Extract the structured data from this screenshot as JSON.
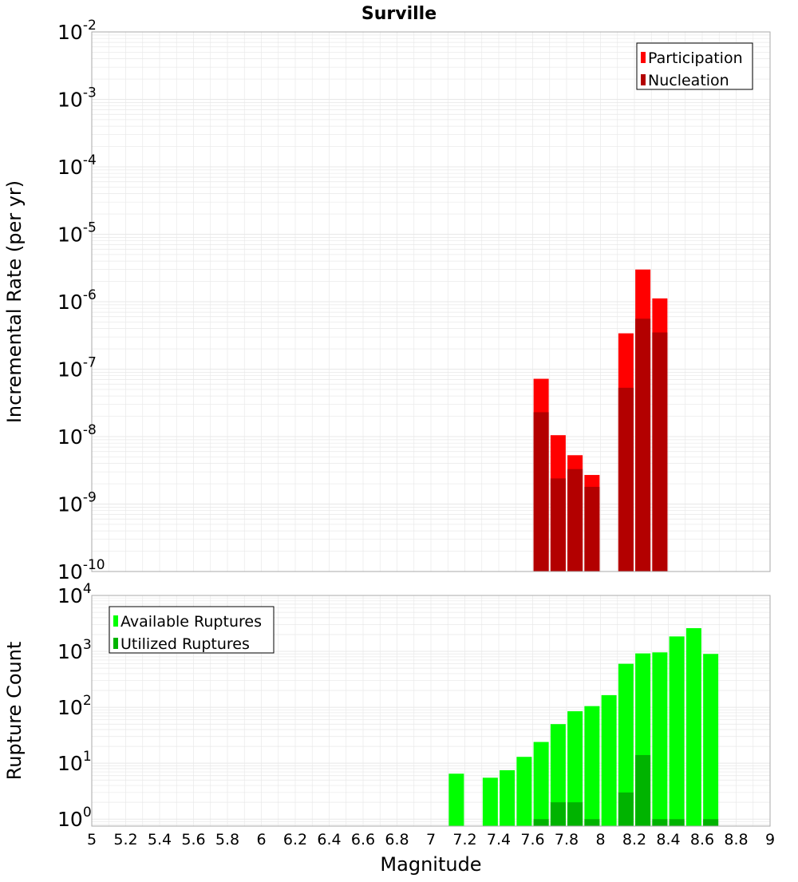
{
  "title": "Surville",
  "colors": {
    "participation": "#ff0000",
    "nucleation": "#b30000",
    "available": "#00ff00",
    "utilized": "#00b300",
    "grid": "#e8e8e8",
    "frame": "#aaaaaa"
  },
  "chart_data": [
    {
      "type": "bar",
      "panel": "top",
      "ylabel": "Incremental Rate (per yr)",
      "yscale": "log",
      "ylim": [
        1e-10,
        0.01
      ],
      "xlim": [
        5,
        9
      ],
      "ytick_labels": [
        {
          "base": "10",
          "exp": "-2"
        },
        {
          "base": "10",
          "exp": "-3"
        },
        {
          "base": "10",
          "exp": "-4"
        },
        {
          "base": "10",
          "exp": "-5"
        },
        {
          "base": "10",
          "exp": "-6"
        },
        {
          "base": "10",
          "exp": "-7"
        },
        {
          "base": "10",
          "exp": "-8"
        },
        {
          "base": "10",
          "exp": "-9"
        },
        {
          "base": "10",
          "exp": "-10"
        }
      ],
      "legend_position": "top-right",
      "series": [
        {
          "name": "Participation",
          "color": "#ff0000",
          "x": [
            7.65,
            7.75,
            7.85,
            7.95,
            8.15,
            8.25,
            8.35
          ],
          "values": [
            7.2e-08,
            1.05e-08,
            5.3e-09,
            2.7e-09,
            3.4e-07,
            3e-06,
            1.12e-06
          ]
        },
        {
          "name": "Nucleation",
          "color": "#b30000",
          "x": [
            7.65,
            7.75,
            7.85,
            7.95,
            8.15,
            8.25,
            8.35
          ],
          "values": [
            2.3e-08,
            2.4e-09,
            3.3e-09,
            1.8e-09,
            5.3e-08,
            5.6e-07,
            3.5e-07
          ]
        }
      ]
    },
    {
      "type": "bar",
      "panel": "bottom",
      "ylabel": "Rupture Count",
      "xlabel": "Magnitude",
      "yscale": "log",
      "ylim": [
        0.75,
        10000
      ],
      "xlim": [
        5,
        9
      ],
      "ytick_labels": [
        {
          "base": "10",
          "exp": "4",
          "value": 10000
        },
        {
          "base": "10",
          "exp": "3",
          "value": 1000
        },
        {
          "base": "10",
          "exp": "2",
          "value": 100
        },
        {
          "base": "10",
          "exp": "1",
          "value": 10
        },
        {
          "base": "10",
          "exp": "0",
          "value": 1
        }
      ],
      "xtick_labels": [
        "5",
        "5.2",
        "5.4",
        "5.6",
        "5.8",
        "6",
        "6.2",
        "6.4",
        "6.6",
        "6.8",
        "7",
        "7.2",
        "7.4",
        "7.6",
        "7.8",
        "8",
        "8.2",
        "8.4",
        "8.6",
        "8.8",
        "9"
      ],
      "legend_position": "top-left",
      "series": [
        {
          "name": "Available Ruptures",
          "color": "#00ff00",
          "x": [
            7.15,
            7.35,
            7.45,
            7.55,
            7.65,
            7.75,
            7.85,
            7.95,
            8.05,
            8.15,
            8.25,
            8.35,
            8.45,
            8.55,
            8.65
          ],
          "values": [
            6.5,
            5.5,
            7.5,
            13,
            24,
            50,
            85,
            105,
            165,
            600,
            920,
            960,
            1850,
            2600,
            900
          ]
        },
        {
          "name": "Utilized Ruptures",
          "color": "#00b300",
          "x": [
            7.65,
            7.75,
            7.85,
            7.95,
            8.15,
            8.25,
            8.35,
            8.45,
            8.65
          ],
          "values": [
            1,
            2,
            2,
            1,
            3,
            14,
            1,
            1,
            1
          ]
        }
      ]
    }
  ]
}
